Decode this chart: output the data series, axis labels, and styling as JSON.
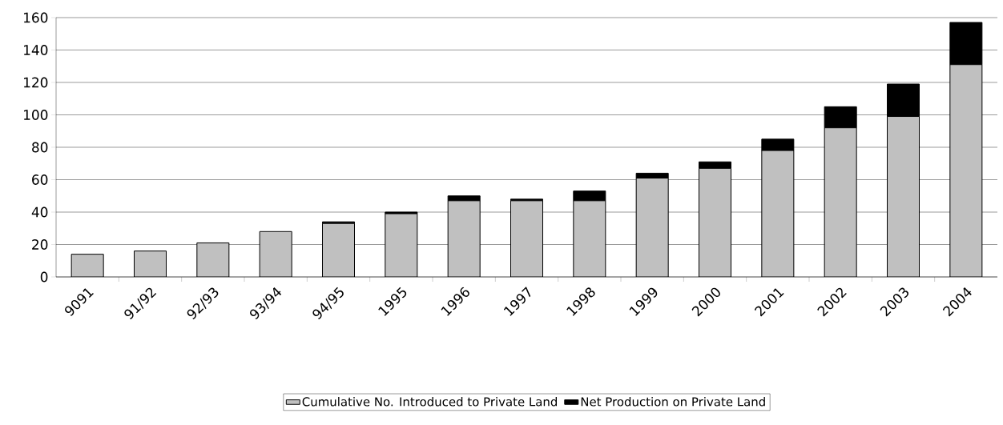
{
  "chart_data": {
    "type": "bar",
    "stacked": true,
    "categories": [
      "9091",
      "91/92",
      "92/93",
      "93/94",
      "94/95",
      "1995",
      "1996",
      "1997",
      "1998",
      "1999",
      "2000",
      "2001",
      "2002",
      "2003",
      "2004"
    ],
    "series": [
      {
        "name": "Cumulative No. Introduced to Private Land",
        "color": "#c0c0c0",
        "values": [
          14,
          16,
          21,
          28,
          33,
          39,
          47,
          47,
          47,
          61,
          67,
          78,
          92,
          99,
          131
        ]
      },
      {
        "name": "Net Production on Private Land",
        "color": "#000000",
        "values": [
          0,
          0,
          0,
          0,
          1,
          1,
          3,
          1,
          6,
          3,
          4,
          7,
          13,
          20,
          26
        ]
      }
    ],
    "ylim": [
      0,
      160
    ],
    "yticks": [
      0,
      20,
      40,
      60,
      80,
      100,
      120,
      140,
      160
    ],
    "grid": "y",
    "legend": "bottom"
  }
}
